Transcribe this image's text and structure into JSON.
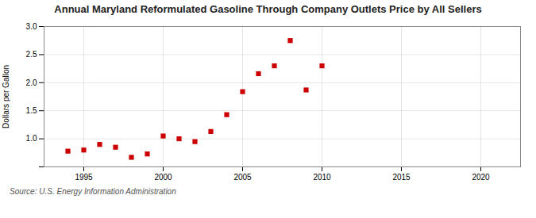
{
  "chart_data": {
    "type": "scatter",
    "title": "Annual Maryland Reformulated Gasoline Through Company Outlets Price by All Sellers",
    "ylabel": "Dollars per Gallon",
    "source": "Source: U.S. Energy Information Administration",
    "x": [
      1994,
      1995,
      1996,
      1997,
      1998,
      1999,
      2000,
      2001,
      2002,
      2003,
      2004,
      2005,
      2006,
      2007,
      2008,
      2009,
      2010
    ],
    "values": [
      0.78,
      0.8,
      0.9,
      0.85,
      0.67,
      0.73,
      1.05,
      1.0,
      0.95,
      1.13,
      1.43,
      1.84,
      2.16,
      2.3,
      2.75,
      1.87,
      2.3
    ],
    "color": "#cc0000",
    "marker": "square",
    "xlim": [
      1992.5,
      2022.5
    ],
    "xticks": [
      1995,
      2000,
      2005,
      2010,
      2015,
      2020
    ],
    "ylim": [
      0.5,
      3.0
    ],
    "yticks": [
      {
        "value": 0.5,
        "label": null
      },
      {
        "value": 1.0,
        "label": "1.0"
      },
      1.5,
      {
        "value": 2.0,
        "label": "2.0"
      },
      2.5,
      {
        "value": 3.0,
        "label": "3.0"
      }
    ],
    "grid": true
  }
}
